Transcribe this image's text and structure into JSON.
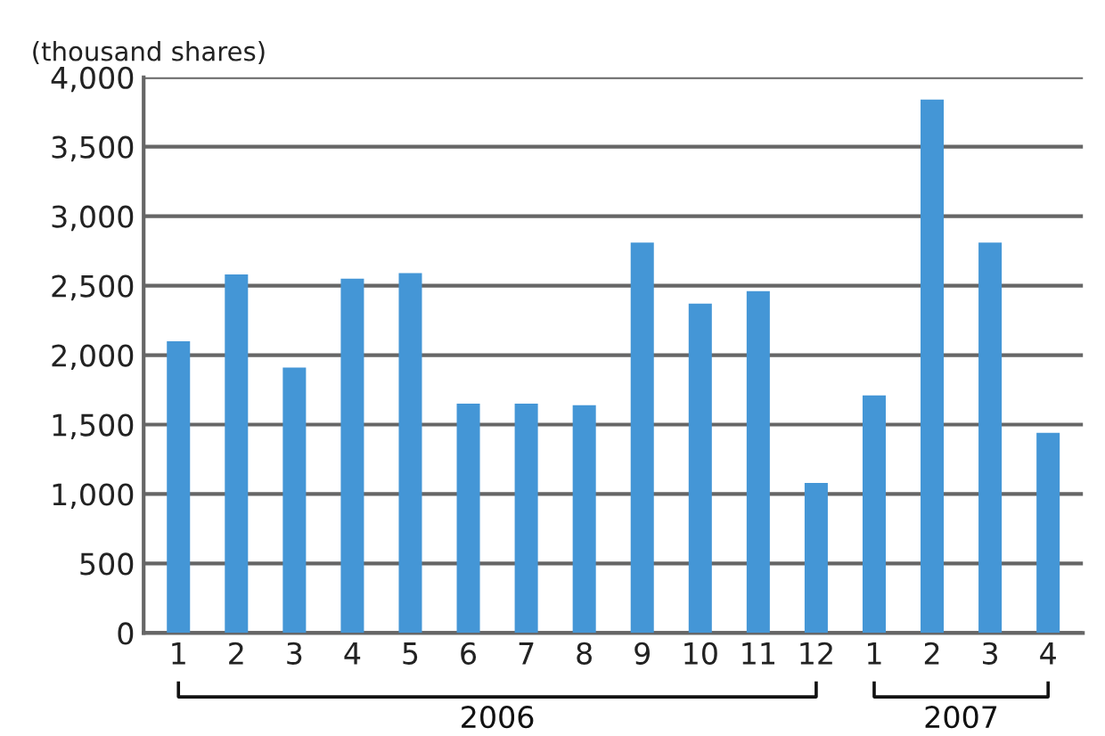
{
  "chart_data": {
    "type": "bar",
    "ylabel": "(thousand shares)",
    "categories": [
      "1",
      "2",
      "3",
      "4",
      "5",
      "6",
      "7",
      "8",
      "9",
      "10",
      "11",
      "12",
      "1",
      "2",
      "3",
      "4"
    ],
    "values": [
      2100,
      2580,
      1910,
      2550,
      2590,
      1650,
      1650,
      1640,
      2810,
      2370,
      2460,
      1080,
      1710,
      3840,
      2810,
      1440
    ],
    "color": "#4496d6",
    "ylim": [
      0,
      4000
    ],
    "yticks": [
      {
        "value": 0,
        "label": "0"
      },
      {
        "value": 500,
        "label": "500"
      },
      {
        "value": 1000,
        "label": "1,000"
      },
      {
        "value": 1500,
        "label": "1,500"
      },
      {
        "value": 2000,
        "label": "2,000"
      },
      {
        "value": 2500,
        "label": "2,500"
      },
      {
        "value": 3000,
        "label": "3,000"
      },
      {
        "value": 3500,
        "label": "3,500"
      },
      {
        "value": 4000,
        "label": "4,000"
      }
    ],
    "grid": "y",
    "annotations": [
      "2006",
      "2007"
    ]
  }
}
